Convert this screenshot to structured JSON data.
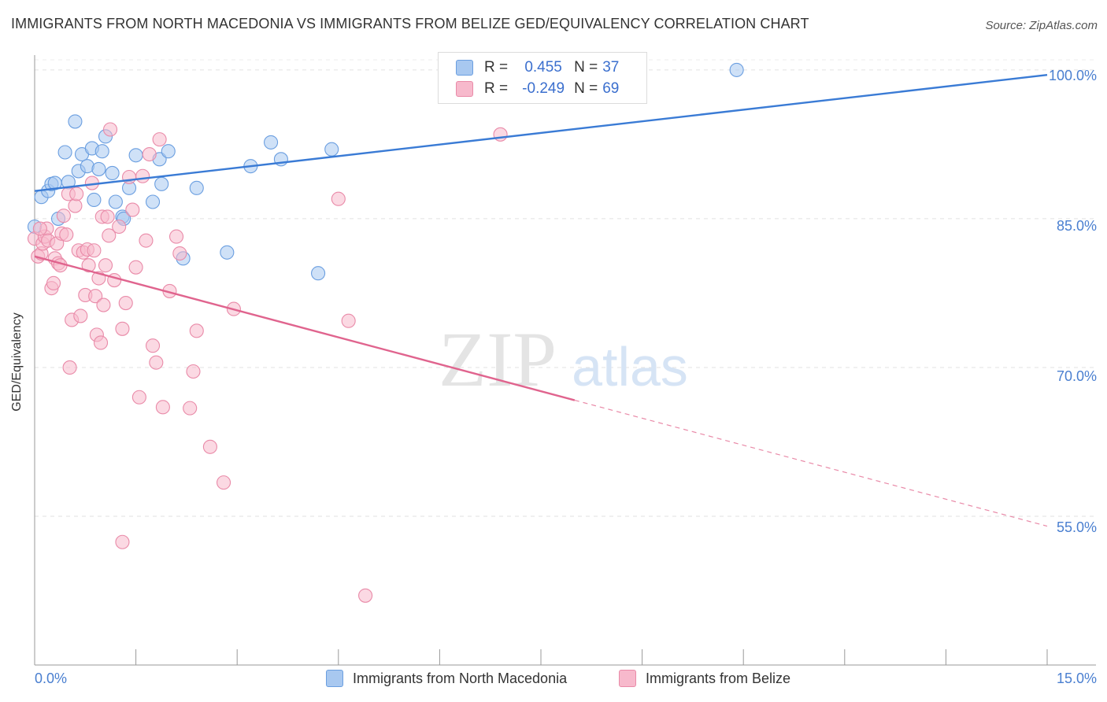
{
  "header": {
    "title": "IMMIGRANTS FROM NORTH MACEDONIA VS IMMIGRANTS FROM BELIZE GED/EQUIVALENCY CORRELATION CHART",
    "source": "Source: ZipAtlas.com"
  },
  "watermark": {
    "zip": "ZIP",
    "atlas": "atlas"
  },
  "legend": {
    "rows": [
      {
        "r_label": "R =",
        "r_value": "0.455",
        "n_label": "N =",
        "n_value": "37",
        "color": "#a8c8f0",
        "border": "#6a9ee0"
      },
      {
        "r_label": "R =",
        "r_value": "-0.249",
        "n_label": "N =",
        "n_value": "69",
        "color": "#f7b9cc",
        "border": "#e98aa8"
      }
    ]
  },
  "bottom_legend": [
    {
      "label": "Immigrants from North Macedonia",
      "color": "#a8c8f0",
      "border": "#6a9ee0"
    },
    {
      "label": "Immigrants from Belize",
      "color": "#f7b9cc",
      "border": "#e98aa8"
    }
  ],
  "chart_data": {
    "type": "scatter",
    "title": "IMMIGRANTS FROM NORTH MACEDONIA VS IMMIGRANTS FROM BELIZE GED/EQUIVALENCY CORRELATION CHART",
    "xlabel": "",
    "ylabel": "GED/Equivalency",
    "xlim": [
      0,
      15
    ],
    "ylim": [
      40,
      101.5
    ],
    "x_tick_labels": [
      "0.0%",
      "15.0%"
    ],
    "y_ticks": [
      55,
      70,
      85,
      100
    ],
    "y_tick_labels": [
      "55.0%",
      "70.0%",
      "85.0%",
      "100.0%"
    ],
    "grid": true,
    "legend_position": "top-center",
    "series": [
      {
        "name": "Immigrants from North Macedonia",
        "color": "#6a9ee0",
        "fill": "#a8c8f0",
        "trend": {
          "x": [
            0,
            15
          ],
          "y": [
            87.8,
            99.5
          ],
          "extrapolated": false
        },
        "points": [
          [
            0.0,
            84.2
          ],
          [
            0.1,
            87.2
          ],
          [
            0.2,
            87.8
          ],
          [
            0.25,
            88.5
          ],
          [
            0.3,
            88.6
          ],
          [
            0.35,
            85.0
          ],
          [
            0.45,
            91.7
          ],
          [
            0.5,
            88.7
          ],
          [
            0.6,
            94.8
          ],
          [
            0.65,
            89.8
          ],
          [
            0.7,
            91.5
          ],
          [
            0.78,
            90.3
          ],
          [
            0.85,
            92.1
          ],
          [
            0.88,
            86.9
          ],
          [
            0.95,
            90.0
          ],
          [
            1.0,
            91.8
          ],
          [
            1.05,
            93.3
          ],
          [
            1.15,
            89.6
          ],
          [
            1.2,
            86.7
          ],
          [
            1.3,
            85.2
          ],
          [
            1.32,
            85.0
          ],
          [
            1.4,
            88.1
          ],
          [
            1.5,
            91.4
          ],
          [
            1.75,
            86.7
          ],
          [
            1.85,
            91.0
          ],
          [
            1.88,
            88.5
          ],
          [
            1.98,
            91.8
          ],
          [
            2.2,
            81.0
          ],
          [
            2.4,
            88.1
          ],
          [
            2.85,
            81.6
          ],
          [
            3.2,
            90.3
          ],
          [
            3.5,
            92.7
          ],
          [
            3.65,
            91.0
          ],
          [
            4.2,
            79.5
          ],
          [
            4.4,
            92.0
          ],
          [
            8.0,
            98.0
          ],
          [
            10.4,
            100.0
          ]
        ]
      },
      {
        "name": "Immigrants from Belize",
        "color": "#e98aa8",
        "fill": "#f7b9cc",
        "trend": {
          "x": [
            0,
            8.0
          ],
          "y": [
            81.2,
            66.7
          ],
          "extrapolated_x": [
            8.0,
            15
          ],
          "extrapolated_y": [
            66.7,
            54.0
          ]
        },
        "points": [
          [
            0.0,
            83.0
          ],
          [
            0.05,
            81.2
          ],
          [
            0.1,
            81.5
          ],
          [
            0.12,
            82.5
          ],
          [
            0.15,
            83.2
          ],
          [
            0.18,
            84.0
          ],
          [
            0.2,
            82.8
          ],
          [
            0.25,
            78.0
          ],
          [
            0.28,
            78.5
          ],
          [
            0.3,
            81.0
          ],
          [
            0.33,
            82.5
          ],
          [
            0.35,
            80.5
          ],
          [
            0.38,
            80.3
          ],
          [
            0.4,
            83.5
          ],
          [
            0.43,
            85.3
          ],
          [
            0.47,
            83.4
          ],
          [
            0.5,
            87.5
          ],
          [
            0.52,
            70.0
          ],
          [
            0.55,
            74.8
          ],
          [
            0.6,
            86.3
          ],
          [
            0.62,
            87.5
          ],
          [
            0.65,
            81.8
          ],
          [
            0.68,
            75.2
          ],
          [
            0.72,
            81.6
          ],
          [
            0.75,
            77.3
          ],
          [
            0.78,
            81.9
          ],
          [
            0.8,
            80.3
          ],
          [
            0.85,
            88.6
          ],
          [
            0.88,
            81.8
          ],
          [
            0.9,
            77.2
          ],
          [
            0.92,
            73.3
          ],
          [
            0.95,
            79.0
          ],
          [
            0.98,
            72.5
          ],
          [
            1.0,
            85.2
          ],
          [
            1.02,
            76.3
          ],
          [
            1.05,
            80.3
          ],
          [
            1.08,
            85.2
          ],
          [
            1.1,
            83.3
          ],
          [
            1.12,
            94.0
          ],
          [
            1.18,
            78.8
          ],
          [
            1.25,
            84.2
          ],
          [
            1.3,
            73.9
          ],
          [
            1.35,
            76.5
          ],
          [
            1.4,
            89.2
          ],
          [
            1.45,
            85.9
          ],
          [
            1.5,
            80.1
          ],
          [
            1.55,
            67.0
          ],
          [
            1.6,
            89.3
          ],
          [
            1.65,
            82.8
          ],
          [
            1.7,
            91.5
          ],
          [
            1.75,
            72.2
          ],
          [
            1.8,
            70.5
          ],
          [
            1.85,
            93.0
          ],
          [
            1.9,
            66.0
          ],
          [
            2.0,
            77.7
          ],
          [
            2.1,
            83.2
          ],
          [
            2.15,
            81.5
          ],
          [
            2.3,
            65.9
          ],
          [
            2.35,
            69.6
          ],
          [
            2.4,
            73.7
          ],
          [
            2.6,
            62.0
          ],
          [
            2.8,
            58.4
          ],
          [
            2.95,
            75.9
          ],
          [
            1.3,
            52.4
          ],
          [
            4.5,
            87.0
          ],
          [
            4.65,
            74.7
          ],
          [
            4.9,
            47.0
          ],
          [
            6.9,
            93.5
          ],
          [
            0.08,
            84.0
          ]
        ]
      }
    ]
  }
}
